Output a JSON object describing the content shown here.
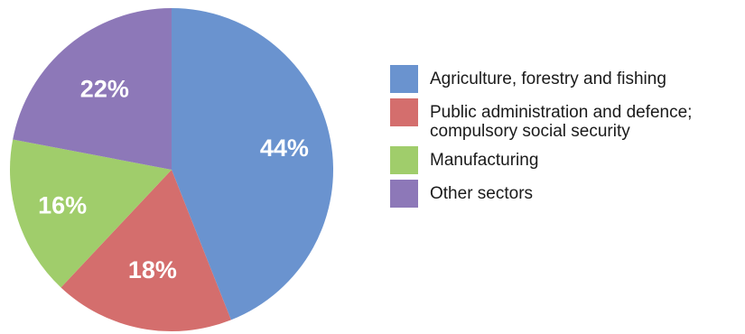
{
  "chart_data": {
    "type": "pie",
    "categories": [
      "Agriculture, forestry and fishing",
      "Public administration and defence; compulsory social security",
      "Manufacturing",
      "Other sectors"
    ],
    "values": [
      44,
      18,
      16,
      22
    ],
    "value_labels": [
      "44%",
      "18%",
      "16%",
      "22%"
    ],
    "colors": [
      "#6a93cf",
      "#d46e6d",
      "#a0cd6b",
      "#8d78b8"
    ],
    "start_angle_deg": 0,
    "direction": "clockwise",
    "legend_position": "right",
    "legend": [
      {
        "label": "Agriculture, forestry and fishing",
        "color": "#6a93cf"
      },
      {
        "label": "Public administration and defence; compulsory social security",
        "color": "#d46e6d"
      },
      {
        "label": "Manufacturing",
        "color": "#a0cd6b"
      },
      {
        "label": "Other sectors",
        "color": "#8d78b8"
      }
    ]
  }
}
